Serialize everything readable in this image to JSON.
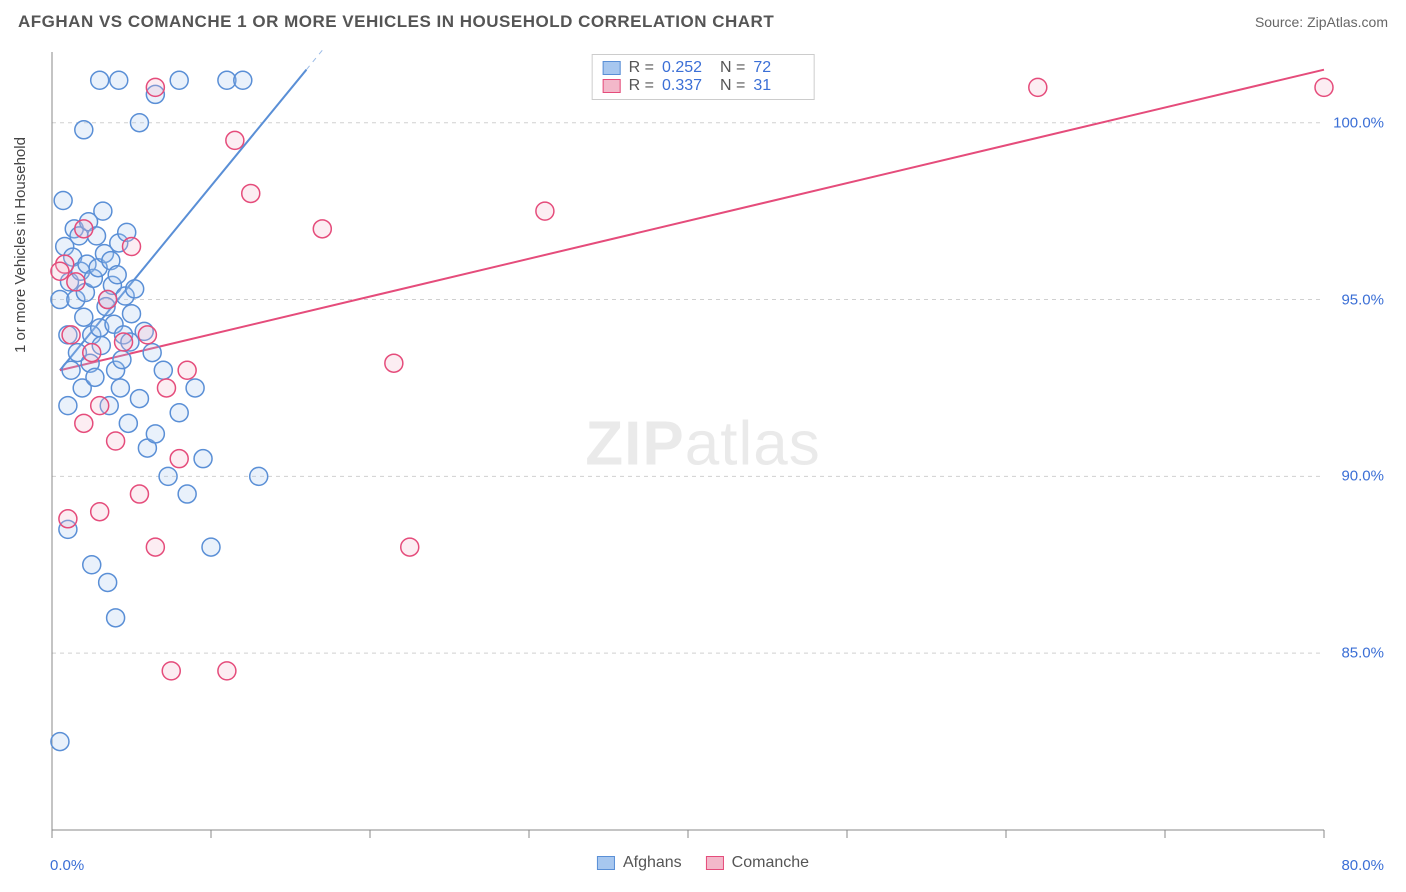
{
  "header": {
    "title": "AFGHAN VS COMANCHE 1 OR MORE VEHICLES IN HOUSEHOLD CORRELATION CHART",
    "source": "Source: ZipAtlas.com"
  },
  "chart": {
    "type": "scatter",
    "ylabel": "1 or more Vehicles in Household",
    "watermark_bold": "ZIP",
    "watermark_rest": "atlas",
    "background_color": "#ffffff",
    "grid_color": "#d0d0d0",
    "axis_color": "#888888",
    "text_color": "#555555",
    "value_color": "#3b6fd6",
    "xlim": [
      0,
      80
    ],
    "ylim": [
      80,
      102
    ],
    "x_ticks": [
      0,
      10,
      20,
      30,
      40,
      50,
      60,
      70,
      80
    ],
    "x_tick_labels": {
      "min": "0.0%",
      "max": "80.0%"
    },
    "y_ticks": [
      85,
      90,
      95,
      100
    ],
    "y_tick_labels": [
      "85.0%",
      "90.0%",
      "95.0%",
      "100.0%"
    ],
    "marker_radius": 9,
    "marker_stroke_width": 1.5,
    "marker_fill_opacity": 0.25,
    "trendline_width": 2,
    "series": [
      {
        "name": "Afghans",
        "color_stroke": "#5a8fd6",
        "color_fill": "#a7c7ef",
        "R": "0.252",
        "N": "72",
        "trendline": {
          "x1": 0.5,
          "y1": 93.0,
          "x2": 16,
          "y2": 101.5,
          "extend_dashed_to_x": 22
        },
        "points": [
          [
            0.5,
            95.0
          ],
          [
            0.7,
            97.8
          ],
          [
            0.8,
            96.5
          ],
          [
            1.0,
            94.0
          ],
          [
            1.1,
            95.5
          ],
          [
            1.2,
            93.0
          ],
          [
            1.0,
            92.0
          ],
          [
            1.3,
            96.2
          ],
          [
            1.5,
            95.0
          ],
          [
            1.4,
            97.0
          ],
          [
            1.6,
            93.5
          ],
          [
            1.8,
            95.8
          ],
          [
            2.0,
            94.5
          ],
          [
            1.7,
            96.8
          ],
          [
            1.9,
            92.5
          ],
          [
            2.1,
            95.2
          ],
          [
            2.3,
            97.2
          ],
          [
            2.5,
            94.0
          ],
          [
            2.2,
            96.0
          ],
          [
            2.4,
            93.2
          ],
          [
            2.6,
            95.6
          ],
          [
            2.8,
            96.8
          ],
          [
            3.0,
            94.2
          ],
          [
            2.7,
            92.8
          ],
          [
            2.9,
            95.9
          ],
          [
            3.1,
            93.7
          ],
          [
            3.3,
            96.3
          ],
          [
            3.5,
            95.0
          ],
          [
            3.2,
            97.5
          ],
          [
            3.4,
            94.8
          ],
          [
            3.6,
            92.0
          ],
          [
            3.8,
            95.4
          ],
          [
            4.0,
            93.0
          ],
          [
            3.7,
            96.1
          ],
          [
            3.9,
            94.3
          ],
          [
            4.1,
            95.7
          ],
          [
            4.3,
            92.5
          ],
          [
            4.5,
            94.0
          ],
          [
            4.2,
            96.6
          ],
          [
            4.4,
            93.3
          ],
          [
            4.6,
            95.1
          ],
          [
            4.8,
            91.5
          ],
          [
            5.0,
            94.6
          ],
          [
            4.7,
            96.9
          ],
          [
            4.9,
            93.8
          ],
          [
            5.2,
            95.3
          ],
          [
            5.5,
            92.2
          ],
          [
            5.8,
            94.1
          ],
          [
            6.0,
            90.8
          ],
          [
            6.3,
            93.5
          ],
          [
            6.5,
            91.2
          ],
          [
            7.0,
            93.0
          ],
          [
            7.3,
            90.0
          ],
          [
            8.0,
            91.8
          ],
          [
            8.5,
            89.5
          ],
          [
            9.0,
            92.5
          ],
          [
            9.5,
            90.5
          ],
          [
            10.0,
            88.0
          ],
          [
            3.0,
            101.2
          ],
          [
            4.2,
            101.2
          ],
          [
            5.5,
            100.0
          ],
          [
            6.5,
            100.8
          ],
          [
            8.0,
            101.2
          ],
          [
            11.0,
            101.2
          ],
          [
            12.0,
            101.2
          ],
          [
            2.0,
            99.8
          ],
          [
            1.0,
            88.5
          ],
          [
            2.5,
            87.5
          ],
          [
            3.5,
            87.0
          ],
          [
            4.0,
            86.0
          ],
          [
            0.5,
            82.5
          ],
          [
            13.0,
            90.0
          ]
        ]
      },
      {
        "name": "Comanche",
        "color_stroke": "#e54c7b",
        "color_fill": "#f3b8ca",
        "R": "0.337",
        "N": "31",
        "trendline": {
          "x1": 0.5,
          "y1": 93.0,
          "x2": 80,
          "y2": 101.5,
          "extend_dashed_to_x": 80
        },
        "points": [
          [
            0.8,
            96.0
          ],
          [
            1.2,
            94.0
          ],
          [
            1.5,
            95.5
          ],
          [
            2.0,
            97.0
          ],
          [
            2.5,
            93.5
          ],
          [
            3.0,
            92.0
          ],
          [
            3.5,
            95.0
          ],
          [
            4.0,
            91.0
          ],
          [
            4.5,
            93.8
          ],
          [
            5.0,
            96.5
          ],
          [
            5.5,
            89.5
          ],
          [
            6.0,
            94.0
          ],
          [
            6.5,
            88.0
          ],
          [
            7.2,
            92.5
          ],
          [
            8.0,
            90.5
          ],
          [
            8.5,
            93.0
          ],
          [
            11.5,
            99.5
          ],
          [
            12.5,
            98.0
          ],
          [
            17.0,
            97.0
          ],
          [
            21.5,
            93.2
          ],
          [
            22.5,
            88.0
          ],
          [
            31.0,
            97.5
          ],
          [
            6.5,
            101.0
          ],
          [
            7.5,
            84.5
          ],
          [
            11.0,
            84.5
          ],
          [
            3.0,
            89.0
          ],
          [
            1.0,
            88.8
          ],
          [
            2.0,
            91.5
          ],
          [
            0.5,
            95.8
          ],
          [
            62.0,
            101.0
          ],
          [
            80.0,
            101.0
          ]
        ]
      }
    ]
  }
}
